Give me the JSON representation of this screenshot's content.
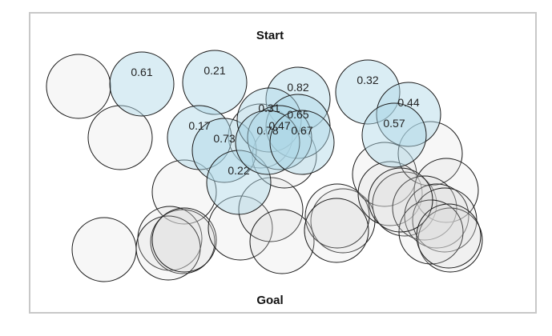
{
  "labels": {
    "top": "Start",
    "bottom": "Goal"
  },
  "colors": {
    "active_fill": "#add8e6",
    "inactive_fill": "#d9d9d9",
    "outline": "#1a1a1a",
    "frame": "#c8c8c8"
  },
  "nodes": [
    {
      "id": "n1",
      "value": "",
      "active": false
    },
    {
      "id": "n2",
      "value": "",
      "active": false
    },
    {
      "id": "n3",
      "value": "",
      "active": false
    },
    {
      "id": "n4",
      "value": "",
      "active": false
    },
    {
      "id": "n5",
      "value": "",
      "active": false
    },
    {
      "id": "n6",
      "value": "",
      "active": false
    },
    {
      "id": "n7",
      "value": "",
      "active": false
    },
    {
      "id": "n8",
      "value": "",
      "active": false
    },
    {
      "id": "n9",
      "value": "",
      "active": false
    },
    {
      "id": "n10",
      "value": "",
      "active": false
    },
    {
      "id": "n11",
      "value": "",
      "active": false
    },
    {
      "id": "n12",
      "value": "",
      "active": false
    },
    {
      "id": "n13",
      "value": "",
      "active": false
    },
    {
      "id": "n14",
      "value": "",
      "active": false
    },
    {
      "id": "n15",
      "value": "",
      "active": false
    },
    {
      "id": "n16",
      "value": "",
      "active": false
    },
    {
      "id": "n17",
      "value": "",
      "active": false
    },
    {
      "id": "n18",
      "value": "",
      "active": false
    },
    {
      "id": "n19",
      "value": "",
      "active": false
    },
    {
      "id": "n20",
      "value": "",
      "active": false
    },
    {
      "id": "n21",
      "value": "",
      "active": false
    },
    {
      "id": "n22",
      "value": "",
      "active": false
    },
    {
      "id": "n23",
      "value": "",
      "active": false
    },
    {
      "id": "n24",
      "value": "",
      "active": false
    },
    {
      "id": "n25",
      "value": "",
      "active": false
    },
    {
      "id": "n26",
      "value": "",
      "active": false
    },
    {
      "id": "n27",
      "value": "",
      "active": false
    },
    {
      "id": "n28",
      "value": "",
      "active": false
    },
    {
      "id": "a1",
      "value": "0.61",
      "active": true
    },
    {
      "id": "a2",
      "value": "0.21",
      "active": true
    },
    {
      "id": "a3",
      "value": "0.32",
      "active": true
    },
    {
      "id": "a4",
      "value": "0.82",
      "active": true
    },
    {
      "id": "a5",
      "value": "0.44",
      "active": true
    },
    {
      "id": "a6",
      "value": "0.57",
      "active": true
    },
    {
      "id": "a7",
      "value": "0.17",
      "active": true
    },
    {
      "id": "a8",
      "value": "0.73",
      "active": true
    },
    {
      "id": "a9",
      "value": "0.22",
      "active": true
    },
    {
      "id": "a10",
      "value": "0.31",
      "active": true
    },
    {
      "id": "a11",
      "value": "0.65",
      "active": true
    },
    {
      "id": "a12",
      "value": "0.47",
      "active": true
    },
    {
      "id": "a13",
      "value": "0.78",
      "active": true
    },
    {
      "id": "a14",
      "value": "0.67",
      "active": true
    }
  ]
}
